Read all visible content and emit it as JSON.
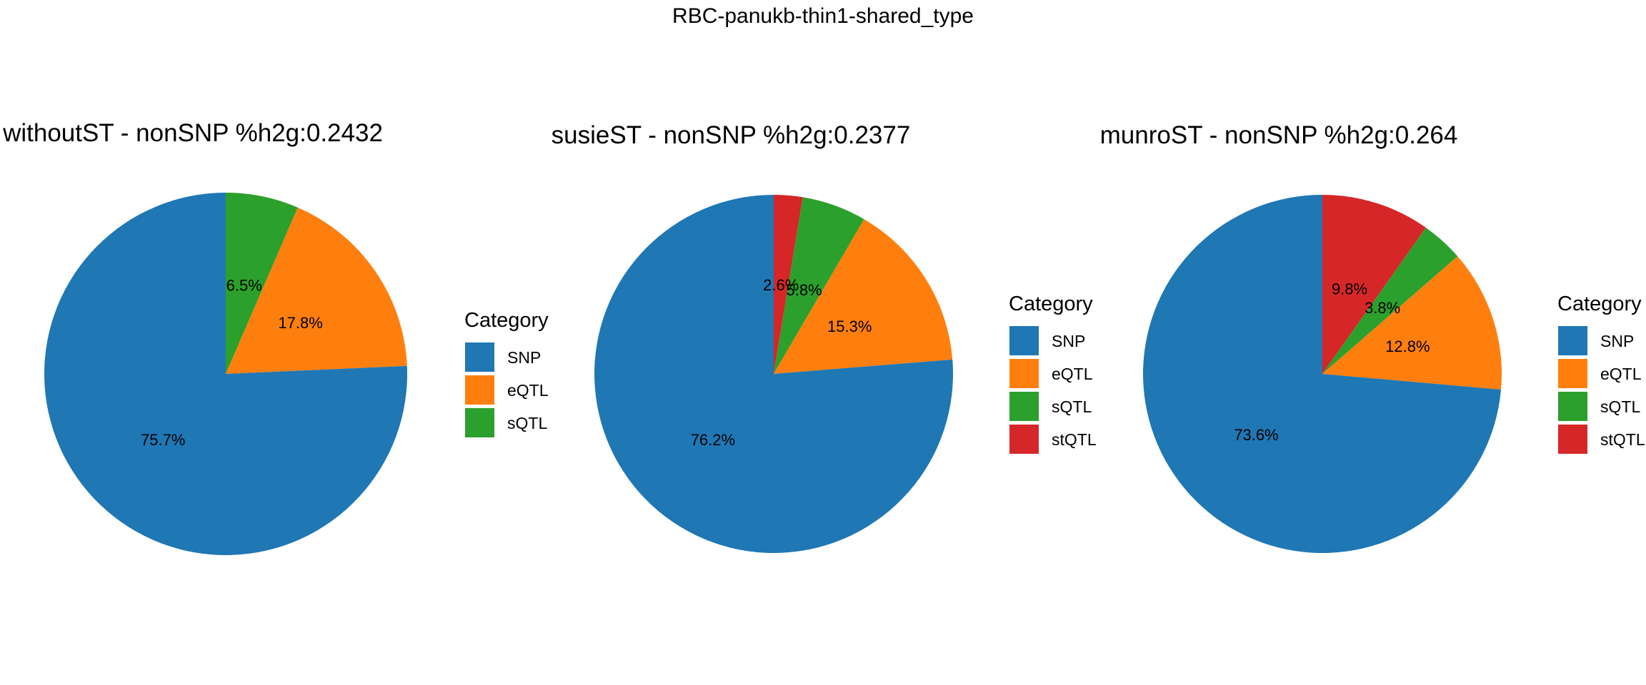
{
  "figure_title": "RBC-panukb-thin1-shared_type",
  "chart_data": [
    {
      "type": "pie",
      "title": "withoutST - nonSNP %h2g:0.2432",
      "legend_title": "Category",
      "legend_placement": "right",
      "slices": [
        {
          "name": "SNP",
          "value": 75.7,
          "label": "75.7%",
          "color": "#1f77b4"
        },
        {
          "name": "eQTL",
          "value": 17.8,
          "label": "17.8%",
          "color": "#ff7f0e"
        },
        {
          "name": "sQTL",
          "value": 6.5,
          "label": "6.5%",
          "color": "#2ca02c"
        }
      ]
    },
    {
      "type": "pie",
      "title": "susieST - nonSNP %h2g:0.2377",
      "legend_title": "Category",
      "legend_placement": "right",
      "slices": [
        {
          "name": "SNP",
          "value": 76.2,
          "label": "76.2%",
          "color": "#1f77b4"
        },
        {
          "name": "eQTL",
          "value": 15.3,
          "label": "15.3%",
          "color": "#ff7f0e"
        },
        {
          "name": "sQTL",
          "value": 5.8,
          "label": "5.8%",
          "color": "#2ca02c"
        },
        {
          "name": "stQTL",
          "value": 2.6,
          "label": "2.6%",
          "color": "#d62728"
        }
      ]
    },
    {
      "type": "pie",
      "title": "munroST - nonSNP %h2g:0.264",
      "legend_title": "Category",
      "legend_placement": "right",
      "slices": [
        {
          "name": "SNP",
          "value": 73.6,
          "label": "73.6%",
          "color": "#1f77b4"
        },
        {
          "name": "eQTL",
          "value": 12.8,
          "label": "12.8%",
          "color": "#ff7f0e"
        },
        {
          "name": "sQTL",
          "value": 3.8,
          "label": "3.8%",
          "color": "#2ca02c"
        },
        {
          "name": "stQTL",
          "value": 9.8,
          "label": "9.8%",
          "color": "#d62728"
        }
      ]
    }
  ]
}
